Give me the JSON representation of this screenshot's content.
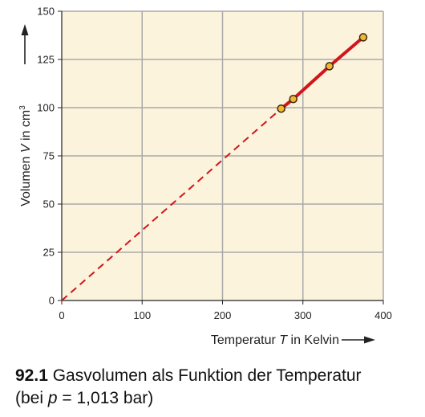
{
  "chart_data": {
    "type": "line",
    "xlabel_prefix": "Temperatur",
    "xlabel_symbol": "T",
    "xlabel_suffix": "in Kelvin",
    "ylabel_prefix": "Volumen",
    "ylabel_symbol": "V",
    "ylabel_suffix": "in cm",
    "ylabel_superscript": "3",
    "xlim": [
      0,
      400
    ],
    "ylim": [
      0,
      150
    ],
    "x_ticks": [
      0,
      100,
      200,
      300,
      400
    ],
    "y_ticks": [
      0,
      25,
      50,
      75,
      100,
      125,
      150
    ],
    "grid": true,
    "background_color": "#fbf3dc",
    "grid_color": "#a9a9a9",
    "line_color": "#d0161b",
    "marker_fill": "#f2b632",
    "marker_stroke": "#3a2a10",
    "series": [
      {
        "style": "measured",
        "x": [
          273,
          288,
          333,
          375
        ],
        "y": [
          99.5,
          104.5,
          121.5,
          136.5
        ]
      }
    ],
    "extrapolation": {
      "style": "dashed",
      "from": [
        0,
        0
      ],
      "to": [
        273,
        99.5
      ]
    }
  },
  "caption": {
    "number": "92.1",
    "text": "Gasvolumen als Funktion der Temperatur",
    "line2_prefix": "(bei",
    "line2_symbol": "p",
    "line2_suffix": "= 1,013 bar)"
  }
}
